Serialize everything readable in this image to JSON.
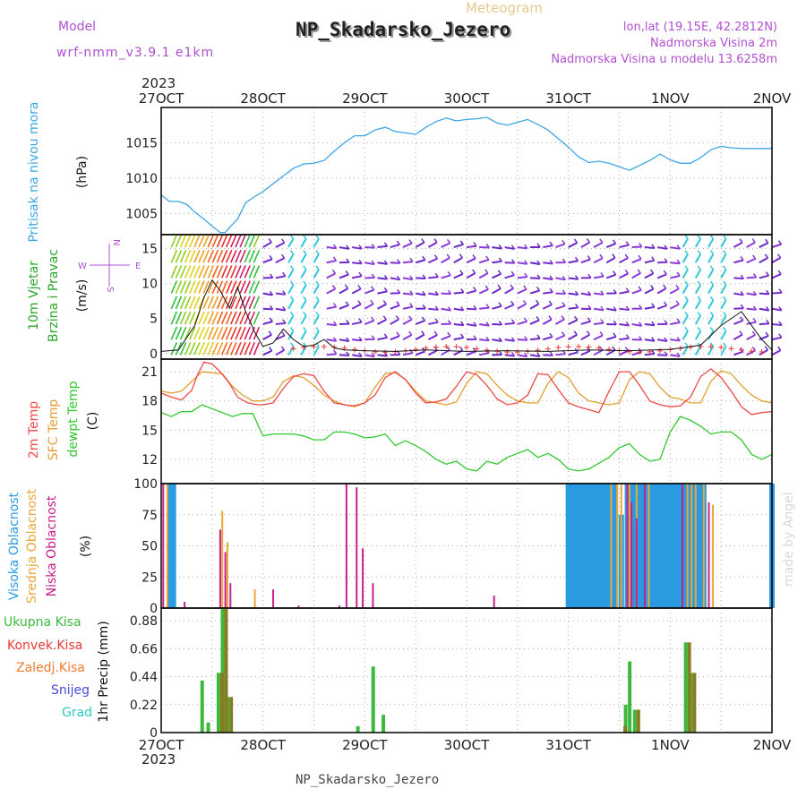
{
  "header": {
    "model_label": "Model",
    "model_value": "wrf-nmm_v3.9.1 e1km",
    "meteogram_label": "Meteogram",
    "station_title": "NP_Skadarsko_Jezero",
    "lonlat": "lon,lat (19.15E, 42.2812N)",
    "elevation": "Nadmorska Visina 2m",
    "model_elevation": "Nadmorska Visina u modelu 13.6258m",
    "year": "2023",
    "footer_station": "NP_Skadarsko_Jezero",
    "watermark": "made by Angel"
  },
  "colors": {
    "pressure": "#3ba6e6",
    "wind_legend_top": "#2aa72a",
    "wind_legend_mid": "#1fbf1f",
    "temp2m": "#f04848",
    "sfc_temp": "#e0a030",
    "dewpt": "#30c830",
    "high_cloud": "#2a9be0",
    "mid_cloud": "#e8a838",
    "low_cloud": "#c8208c",
    "total_precip": "#3cb83c",
    "conv_precip": "#e83838",
    "frozen_precip": "#f07a30",
    "snow": "#4848e0",
    "hail": "#30c8c8",
    "purple": "#b050d0"
  },
  "x_axis": {
    "top_labels": [
      "27OCT",
      "28OCT",
      "29OCT",
      "30OCT",
      "31OCT",
      "1NOV",
      "2NOV"
    ],
    "bottom_labels": [
      "27OCT",
      "28OCT",
      "29OCT",
      "30OCT",
      "31OCT",
      "1NOV",
      "2NOV"
    ]
  },
  "compass": {
    "n": "N",
    "s": "S",
    "w": "W",
    "e": "E"
  },
  "chart_data": [
    {
      "type": "line",
      "panel": "pressure",
      "ylabel_left": "Pritisak na nivou mora",
      "ylabel_right": "(hPa)",
      "yticks": [
        1005,
        1010,
        1015
      ],
      "ylim": [
        1002,
        1020
      ],
      "x_days": [
        0,
        0.08,
        0.17,
        0.25,
        0.33,
        0.42,
        0.5,
        0.58,
        0.63,
        0.67,
        0.75,
        0.83,
        0.92,
        1.0,
        1.1,
        1.2,
        1.3,
        1.4,
        1.5,
        1.6,
        1.7,
        1.8,
        1.9,
        2.0,
        2.1,
        2.2,
        2.3,
        2.4,
        2.5,
        2.6,
        2.7,
        2.8,
        2.9,
        3.0,
        3.1,
        3.2,
        3.3,
        3.4,
        3.5,
        3.6,
        3.7,
        3.8,
        3.9,
        4.0,
        4.1,
        4.2,
        4.3,
        4.4,
        4.5,
        4.6,
        4.7,
        4.8,
        4.9,
        5.0,
        5.1,
        5.2,
        5.3,
        5.4,
        5.5,
        5.6,
        5.7,
        5.8,
        5.9,
        6.0
      ],
      "values": [
        1007.6,
        1006.7,
        1006.7,
        1006.3,
        1005.2,
        1004.2,
        1003.2,
        1002.3,
        1002.3,
        1003.0,
        1004.2,
        1006.5,
        1007.4,
        1008.1,
        1009.2,
        1010.3,
        1011.4,
        1012.0,
        1012.1,
        1012.5,
        1013.8,
        1015.0,
        1016.0,
        1016.0,
        1016.8,
        1017.2,
        1016.6,
        1016.4,
        1016.2,
        1017.2,
        1018.0,
        1018.5,
        1018.1,
        1018.3,
        1018.4,
        1018.6,
        1017.8,
        1017.5,
        1017.9,
        1018.3,
        1017.6,
        1016.8,
        1015.6,
        1014.4,
        1013.0,
        1012.2,
        1012.4,
        1012.1,
        1011.6,
        1011.1,
        1011.8,
        1012.5,
        1013.4,
        1012.6,
        1012.1,
        1012.1,
        1012.9,
        1014.0,
        1014.5,
        1014.3,
        1014.2,
        1014.2,
        1014.2,
        1014.2
      ]
    },
    {
      "type": "line",
      "panel": "wind",
      "ylabel_left_1": "10m Vjetar",
      "ylabel_left_2": "Brzina i Pravac",
      "ylabel_right": "(m/s)",
      "yticks": [
        0,
        5,
        10,
        15
      ],
      "ylim": [
        -0.8,
        17
      ],
      "x_days": [
        0,
        0.17,
        0.33,
        0.42,
        0.5,
        0.58,
        0.67,
        0.75,
        0.83,
        0.92,
        1.0,
        1.1,
        1.2,
        1.3,
        1.4,
        1.5,
        1.6,
        1.7,
        1.8,
        2.0,
        2.3,
        2.6,
        3.0,
        3.4,
        3.8,
        4.2,
        4.6,
        5.0,
        5.3,
        5.5,
        5.7,
        5.9,
        6.0
      ],
      "values": [
        0.3,
        0.5,
        4.0,
        8.0,
        10.5,
        9.0,
        6.5,
        9.5,
        6.0,
        3.0,
        1.0,
        1.5,
        3.5,
        2.0,
        1.0,
        1.2,
        2.0,
        0.8,
        0.5,
        0.4,
        0.3,
        0.5,
        0.3,
        0.4,
        0.3,
        0.5,
        0.4,
        0.6,
        1.2,
        4.0,
        6.0,
        2.0,
        0.5
      ]
    },
    {
      "type": "line",
      "panel": "temperature",
      "ylabel_left_1": "2m Temp",
      "ylabel_left_2": "SFC Temp",
      "ylabel_left_3": "dewpt Temp",
      "ylabel_right": "(C)",
      "yticks": [
        12,
        15,
        18,
        21
      ],
      "ylim": [
        9.5,
        22.3
      ],
      "series": [
        {
          "name": "2m Temp",
          "x_days": [
            0,
            0.1,
            0.2,
            0.3,
            0.35,
            0.42,
            0.5,
            0.58,
            0.67,
            0.75,
            0.85,
            0.95,
            1.0,
            1.1,
            1.2,
            1.3,
            1.4,
            1.5,
            1.6,
            1.7,
            1.8,
            1.9,
            2.0,
            2.1,
            2.2,
            2.3,
            2.4,
            2.5,
            2.6,
            2.7,
            2.8,
            2.9,
            3.0,
            3.1,
            3.2,
            3.3,
            3.4,
            3.5,
            3.6,
            3.7,
            3.8,
            3.9,
            4.0,
            4.1,
            4.2,
            4.3,
            4.4,
            4.5,
            4.6,
            4.7,
            4.8,
            4.9,
            5.0,
            5.1,
            5.2,
            5.3,
            5.4,
            5.5,
            5.6,
            5.7,
            5.8,
            5.9,
            6.0
          ],
          "values": [
            18.8,
            18.4,
            18.1,
            19.1,
            20.5,
            22.0,
            21.8,
            21.0,
            19.8,
            18.4,
            17.8,
            17.6,
            17.6,
            17.8,
            19.3,
            20.5,
            20.8,
            20.6,
            19.0,
            17.8,
            17.6,
            17.5,
            17.8,
            18.6,
            20.4,
            21.0,
            20.2,
            18.8,
            17.8,
            17.9,
            18.2,
            19.5,
            21.0,
            20.7,
            19.6,
            18.2,
            17.6,
            17.8,
            18.6,
            20.8,
            20.7,
            19.2,
            17.8,
            17.4,
            17.1,
            16.8,
            19.0,
            21.0,
            21.0,
            19.6,
            18.0,
            17.6,
            17.4,
            17.5,
            18.4,
            20.5,
            21.3,
            20.4,
            19.0,
            17.4,
            16.6,
            16.8,
            16.9
          ]
        },
        {
          "name": "SFC Temp",
          "x_days": [
            0,
            0.1,
            0.2,
            0.3,
            0.4,
            0.5,
            0.6,
            0.7,
            0.8,
            0.9,
            1.0,
            1.1,
            1.2,
            1.3,
            1.4,
            1.5,
            1.6,
            1.7,
            1.8,
            1.9,
            2.0,
            2.1,
            2.2,
            2.3,
            2.4,
            2.5,
            2.6,
            2.7,
            2.8,
            2.9,
            3.0,
            3.1,
            3.2,
            3.3,
            3.4,
            3.5,
            3.6,
            3.7,
            3.8,
            3.9,
            4.0,
            4.1,
            4.2,
            4.3,
            4.4,
            4.5,
            4.6,
            4.7,
            4.8,
            4.9,
            5.0,
            5.1,
            5.2,
            5.3,
            5.4,
            5.5,
            5.6,
            5.7,
            5.8,
            5.9,
            6.0
          ],
          "values": [
            19.0,
            18.8,
            19.0,
            20.0,
            21.0,
            20.9,
            20.8,
            19.5,
            18.6,
            18.0,
            18.0,
            18.4,
            20.0,
            20.6,
            20.4,
            19.6,
            18.6,
            18.0,
            17.6,
            17.4,
            17.8,
            19.4,
            20.8,
            20.9,
            20.2,
            19.0,
            18.0,
            17.8,
            17.6,
            17.9,
            19.8,
            21.0,
            20.8,
            19.6,
            18.6,
            18.0,
            17.8,
            17.8,
            19.8,
            21.0,
            20.4,
            18.8,
            18.0,
            17.8,
            17.6,
            17.8,
            20.2,
            21.0,
            20.8,
            19.4,
            18.4,
            18.2,
            17.8,
            17.8,
            20.0,
            21.1,
            20.8,
            19.6,
            18.6,
            18.0,
            17.8
          ]
        },
        {
          "name": "dewpt Temp",
          "x_days": [
            0,
            0.1,
            0.2,
            0.3,
            0.4,
            0.5,
            0.6,
            0.7,
            0.8,
            0.9,
            1.0,
            1.1,
            1.2,
            1.3,
            1.4,
            1.5,
            1.6,
            1.7,
            1.8,
            1.9,
            2.0,
            2.1,
            2.2,
            2.3,
            2.4,
            2.5,
            2.6,
            2.7,
            2.8,
            2.9,
            3.0,
            3.1,
            3.2,
            3.3,
            3.4,
            3.5,
            3.6,
            3.7,
            3.8,
            3.9,
            4.0,
            4.1,
            4.2,
            4.3,
            4.4,
            4.5,
            4.6,
            4.7,
            4.8,
            4.9,
            5.0,
            5.1,
            5.2,
            5.3,
            5.4,
            5.5,
            5.6,
            5.7,
            5.8,
            5.9,
            6.0
          ],
          "values": [
            16.8,
            16.4,
            16.9,
            16.9,
            17.6,
            17.2,
            16.8,
            16.4,
            16.7,
            16.7,
            14.4,
            14.6,
            14.6,
            14.6,
            14.4,
            14.0,
            14.0,
            14.8,
            14.8,
            14.6,
            14.2,
            14.3,
            14.6,
            13.4,
            13.9,
            13.4,
            12.8,
            12.0,
            11.5,
            11.8,
            11.0,
            10.8,
            11.8,
            11.5,
            12.2,
            12.6,
            13.0,
            12.2,
            12.6,
            12.0,
            11.0,
            10.8,
            11.0,
            11.6,
            12.2,
            13.2,
            13.6,
            12.5,
            11.8,
            12.0,
            14.8,
            16.4,
            16.0,
            15.4,
            14.6,
            14.8,
            14.8,
            14.0,
            12.5,
            12.0,
            12.5
          ]
        }
      ]
    },
    {
      "type": "bar",
      "panel": "cloud_cover",
      "ylabel_left_1": "Visoka Oblacnost",
      "ylabel_left_2": "Srednja Oblacnost",
      "ylabel_left_3": "Niska Oblacnost",
      "ylabel_right": "(%)",
      "yticks": [
        0,
        25,
        50,
        75,
        100
      ],
      "ylim": [
        0,
        100
      ],
      "series": [
        {
          "name": "Visoka Oblacnost",
          "x_days": [
            0.08,
            0.12,
            4.0,
            4.04,
            4.08,
            4.12,
            4.17,
            4.21,
            4.25,
            4.29,
            4.33,
            4.38,
            4.42,
            4.46,
            4.52,
            4.58,
            4.62,
            4.67,
            4.71,
            4.75,
            4.79,
            4.83,
            4.88,
            4.92,
            4.96,
            5.0,
            5.04,
            5.08,
            5.12,
            5.17,
            5.21,
            5.25,
            5.29,
            5.33,
            6.0
          ],
          "values": [
            100,
            100,
            100,
            100,
            100,
            100,
            100,
            100,
            100,
            100,
            100,
            100,
            100,
            100,
            75,
            100,
            100,
            100,
            100,
            100,
            100,
            100,
            100,
            100,
            100,
            100,
            100,
            100,
            100,
            100,
            100,
            100,
            100,
            100,
            100
          ]
        },
        {
          "name": "Srednja Oblacnost",
          "x_days": [
            0.06,
            0.6,
            0.65,
            0.92,
            4.42,
            4.48,
            4.52,
            4.6,
            4.67,
            4.79,
            5.17,
            5.21,
            5.25,
            5.33,
            5.42
          ],
          "values": [
            100,
            78,
            53,
            15,
            100,
            100,
            100,
            100,
            100,
            100,
            100,
            100,
            100,
            100,
            83
          ]
        },
        {
          "name": "Niska Oblacnost",
          "x_days": [
            0.02,
            0.23,
            0.58,
            0.63,
            0.68,
            1.1,
            1.35,
            1.75,
            1.82,
            1.92,
            1.98,
            2.08,
            3.27,
            4.58,
            4.62,
            4.67,
            4.75,
            5.12,
            5.38
          ],
          "values": [
            100,
            5,
            63,
            45,
            20,
            15,
            2,
            2,
            100,
            97,
            48,
            20,
            10,
            100,
            85,
            72,
            100,
            100,
            85
          ]
        }
      ]
    },
    {
      "type": "bar",
      "panel": "precipitation",
      "ylabel_right": "1hr Precip (mm)",
      "legend": [
        "Ukupna Kisa",
        "Konvek.Kisa",
        "Zaledj.Kisa",
        "Snijeg",
        "Grad"
      ],
      "yticks": [
        0,
        0.22,
        0.44,
        0.66,
        0.88
      ],
      "ylim": [
        0,
        0.98
      ],
      "series": [
        {
          "name": "Ukupna Kisa",
          "x_days": [
            0.42,
            0.48,
            0.58,
            0.62,
            0.67,
            1.95,
            2.1,
            2.2,
            4.58,
            4.62,
            4.67,
            5.17,
            5.22
          ],
          "values": [
            0.41,
            0.08,
            0.47,
            0.98,
            0.28,
            0.05,
            0.52,
            0.14,
            0.22,
            0.56,
            0.18,
            0.71,
            0.47
          ]
        },
        {
          "name": "Konvek.Kisa",
          "x_days": [
            0.58,
            0.62,
            0.67,
            4.54,
            4.67,
            5.17,
            5.22
          ],
          "values": [
            0.47,
            0.98,
            0.28,
            0.05,
            0.18,
            0.71,
            0.47
          ]
        }
      ]
    }
  ]
}
